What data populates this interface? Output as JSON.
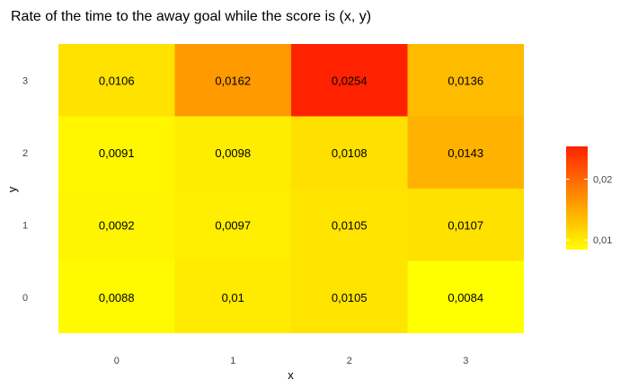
{
  "chart_data": {
    "type": "heatmap",
    "title": "Rate of the time to the away goal while the score is (x, y)",
    "xlabel": "x",
    "ylabel": "y",
    "x_categories": [
      "0",
      "1",
      "2",
      "3"
    ],
    "y_categories": [
      "0",
      "1",
      "2",
      "3"
    ],
    "cells": [
      {
        "x": "0",
        "y": "3",
        "value": 0.0106,
        "label": "0,0106"
      },
      {
        "x": "1",
        "y": "3",
        "value": 0.0162,
        "label": "0,0162"
      },
      {
        "x": "2",
        "y": "3",
        "value": 0.0254,
        "label": "0,0254"
      },
      {
        "x": "3",
        "y": "3",
        "value": 0.0136,
        "label": "0,0136"
      },
      {
        "x": "0",
        "y": "2",
        "value": 0.0091,
        "label": "0,0091"
      },
      {
        "x": "1",
        "y": "2",
        "value": 0.0098,
        "label": "0,0098"
      },
      {
        "x": "2",
        "y": "2",
        "value": 0.0108,
        "label": "0,0108"
      },
      {
        "x": "3",
        "y": "2",
        "value": 0.0143,
        "label": "0,0143"
      },
      {
        "x": "0",
        "y": "1",
        "value": 0.0092,
        "label": "0,0092"
      },
      {
        "x": "1",
        "y": "1",
        "value": 0.0097,
        "label": "0,0097"
      },
      {
        "x": "2",
        "y": "1",
        "value": 0.0105,
        "label": "0,0105"
      },
      {
        "x": "3",
        "y": "1",
        "value": 0.0107,
        "label": "0,0107"
      },
      {
        "x": "0",
        "y": "0",
        "value": 0.0088,
        "label": "0,0088"
      },
      {
        "x": "1",
        "y": "0",
        "value": 0.01,
        "label": "0,01"
      },
      {
        "x": "2",
        "y": "0",
        "value": 0.0105,
        "label": "0,0105"
      },
      {
        "x": "3",
        "y": "0",
        "value": 0.0084,
        "label": "0,0084"
      }
    ],
    "color_scale": {
      "low_color": "#FFFF00",
      "high_color": "#FF2200",
      "min": 0.0084,
      "max": 0.0254
    },
    "legend": {
      "position": "right",
      "ticks": [
        {
          "value": 0.01,
          "label": "0,01"
        },
        {
          "value": 0.02,
          "label": "0,02"
        }
      ]
    },
    "grid": false
  }
}
